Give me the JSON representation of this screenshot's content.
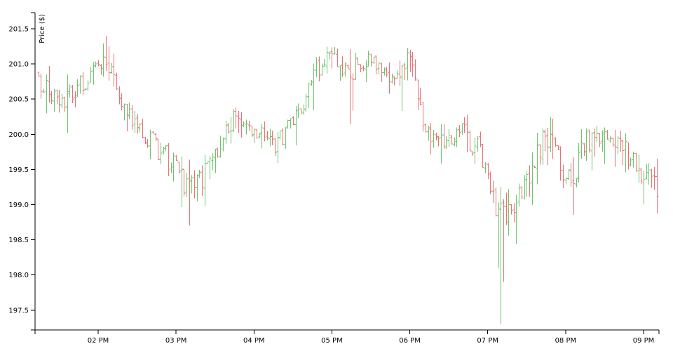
{
  "chart_data": {
    "type": "ohlc",
    "title": "",
    "xlabel": "",
    "ylabel": "Price ($)",
    "ylim": [
      197.2,
      201.7
    ],
    "xlim": [
      "01:12 PM",
      "09:10 PM"
    ],
    "y_ticks": [
      "197.5",
      "198.0",
      "198.5",
      "199.0",
      "199.5",
      "200.0",
      "200.5",
      "201.0",
      "201.5"
    ],
    "x_ticks": [
      "02 PM",
      "03 PM",
      "04 PM",
      "05 PM",
      "06 PM",
      "07 PM",
      "08 PM",
      "09 PM"
    ],
    "colors": {
      "up": "#6cc56c",
      "down": "#eb7171",
      "axis": "#000000"
    },
    "bars_per_hour": 30,
    "path_anchors": [
      {
        "t": "01:12 PM",
        "price": 200.8
      },
      {
        "t": "01:25 PM",
        "price": 200.6
      },
      {
        "t": "01:40 PM",
        "price": 200.5
      },
      {
        "t": "01:55 PM",
        "price": 200.9
      },
      {
        "t": "02:05 PM",
        "price": 201.0
      },
      {
        "t": "02:15 PM",
        "price": 200.6
      },
      {
        "t": "02:30 PM",
        "price": 200.1
      },
      {
        "t": "02:45 PM",
        "price": 199.8
      },
      {
        "t": "02:55 PM",
        "price": 199.6
      },
      {
        "t": "03:10 PM",
        "price": 199.2
      },
      {
        "t": "03:20 PM",
        "price": 199.4
      },
      {
        "t": "03:30 PM",
        "price": 199.7
      },
      {
        "t": "03:45 PM",
        "price": 200.2
      },
      {
        "t": "04:00 PM",
        "price": 200.1
      },
      {
        "t": "04:15 PM",
        "price": 199.8
      },
      {
        "t": "04:30 PM",
        "price": 200.2
      },
      {
        "t": "04:45 PM",
        "price": 200.8
      },
      {
        "t": "05:00 PM",
        "price": 201.1
      },
      {
        "t": "05:15 PM",
        "price": 200.9
      },
      {
        "t": "05:30 PM",
        "price": 201.0
      },
      {
        "t": "05:45 PM",
        "price": 200.9
      },
      {
        "t": "06:00 PM",
        "price": 201.0
      },
      {
        "t": "06:10 PM",
        "price": 200.2
      },
      {
        "t": "06:25 PM",
        "price": 199.8
      },
      {
        "t": "06:40 PM",
        "price": 200.1
      },
      {
        "t": "06:55 PM",
        "price": 199.7
      },
      {
        "t": "07:05 PM",
        "price": 199.0
      },
      {
        "t": "07:15 PM",
        "price": 198.8
      },
      {
        "t": "07:25 PM",
        "price": 199.2
      },
      {
        "t": "07:35 PM",
        "price": 199.6
      },
      {
        "t": "07:45 PM",
        "price": 200.0
      },
      {
        "t": "07:55 PM",
        "price": 199.6
      },
      {
        "t": "08:05 PM",
        "price": 199.3
      },
      {
        "t": "08:15 PM",
        "price": 199.9
      },
      {
        "t": "08:30 PM",
        "price": 200.0
      },
      {
        "t": "08:45 PM",
        "price": 199.8
      },
      {
        "t": "09:00 PM",
        "price": 199.4
      },
      {
        "t": "09:10 PM",
        "price": 199.2
      }
    ],
    "extreme_lows": [
      {
        "t": "07:10 PM",
        "low": 197.3
      },
      {
        "t": "07:12 PM",
        "low": 197.9
      },
      {
        "t": "07:08 PM",
        "low": 198.1
      },
      {
        "t": "03:10 PM",
        "low": 198.7
      }
    ]
  }
}
